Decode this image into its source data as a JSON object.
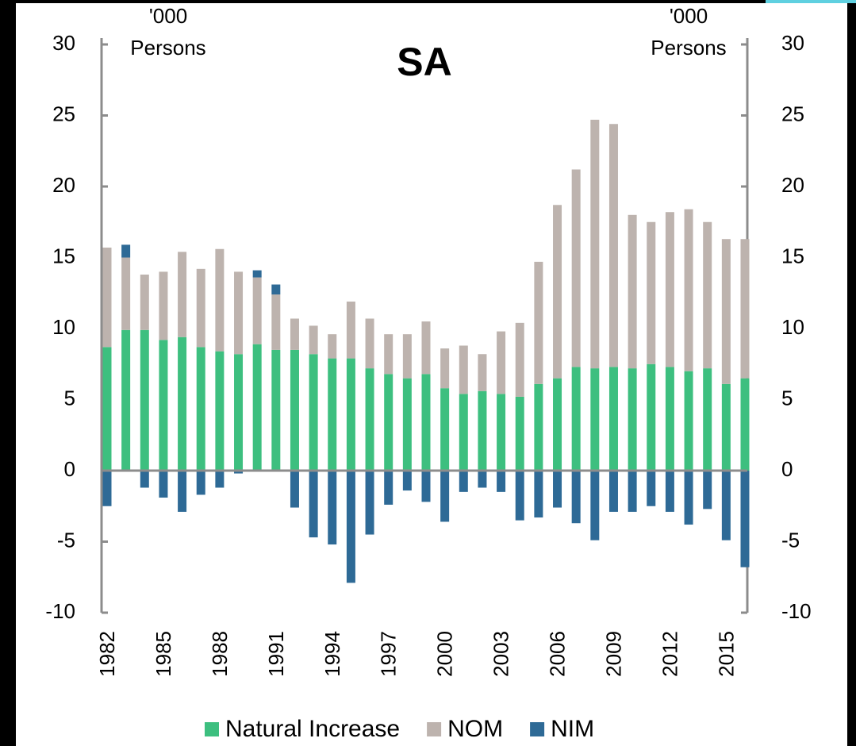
{
  "chart_data": {
    "type": "stacked_bar",
    "title": "SA",
    "ylabel_lines": [
      "'000",
      "Persons"
    ],
    "y2label_lines": [
      "'000",
      "Persons"
    ],
    "categories": [
      "1982",
      null,
      null,
      "1985",
      null,
      null,
      "1988",
      null,
      null,
      "1991",
      null,
      null,
      "1994",
      null,
      null,
      "1997",
      null,
      null,
      "2000",
      null,
      null,
      "2003",
      null,
      null,
      "2006",
      null,
      null,
      "2009",
      null,
      null,
      "2012",
      null,
      null,
      "2015",
      null
    ],
    "series": [
      {
        "name": "Natural Increase",
        "color": "#3dbf7f",
        "values": [
          8.7,
          9.9,
          9.9,
          9.2,
          9.4,
          8.7,
          8.4,
          8.2,
          8.9,
          8.5,
          8.5,
          8.2,
          7.9,
          7.9,
          7.2,
          6.8,
          6.5,
          6.8,
          5.8,
          5.4,
          5.6,
          5.4,
          5.2,
          6.1,
          6.5,
          7.3,
          7.2,
          7.3,
          7.2,
          7.5,
          7.3,
          7.0,
          7.2,
          6.1,
          6.5
        ]
      },
      {
        "name": "NOM",
        "color": "#bdb3ae",
        "values": [
          7.0,
          5.1,
          3.9,
          4.8,
          6.0,
          5.5,
          7.2,
          5.8,
          4.7,
          3.9,
          2.2,
          2.0,
          1.7,
          4.0,
          3.5,
          2.8,
          3.1,
          3.7,
          2.8,
          3.4,
          2.6,
          4.4,
          5.2,
          8.6,
          12.2,
          13.9,
          17.5,
          17.1,
          10.8,
          10.0,
          10.9,
          11.4,
          10.3,
          10.2,
          9.8
        ]
      },
      {
        "name": "NIM",
        "color": "#2e6a96",
        "values": [
          -2.5,
          0.9,
          -1.2,
          -1.9,
          -2.9,
          -1.7,
          -1.2,
          -0.2,
          0.5,
          0.7,
          -2.6,
          -4.7,
          -5.2,
          -7.9,
          -4.5,
          -2.4,
          -1.4,
          -2.2,
          -3.6,
          -1.5,
          -1.2,
          -1.5,
          -3.5,
          -3.3,
          -2.6,
          -3.7,
          -4.9,
          -2.9,
          -2.9,
          -2.5,
          -2.9,
          -3.8,
          -2.7,
          -4.9,
          -6.8
        ]
      }
    ],
    "ylim": [
      -10,
      30
    ],
    "yticks": [
      -10,
      -5,
      0,
      5,
      10,
      15,
      20,
      25,
      30
    ],
    "y2lim": [
      -10,
      30
    ],
    "y2ticks": [
      -10,
      -5,
      0,
      5,
      10,
      15,
      20,
      25,
      30
    ],
    "legend": "bottom"
  }
}
